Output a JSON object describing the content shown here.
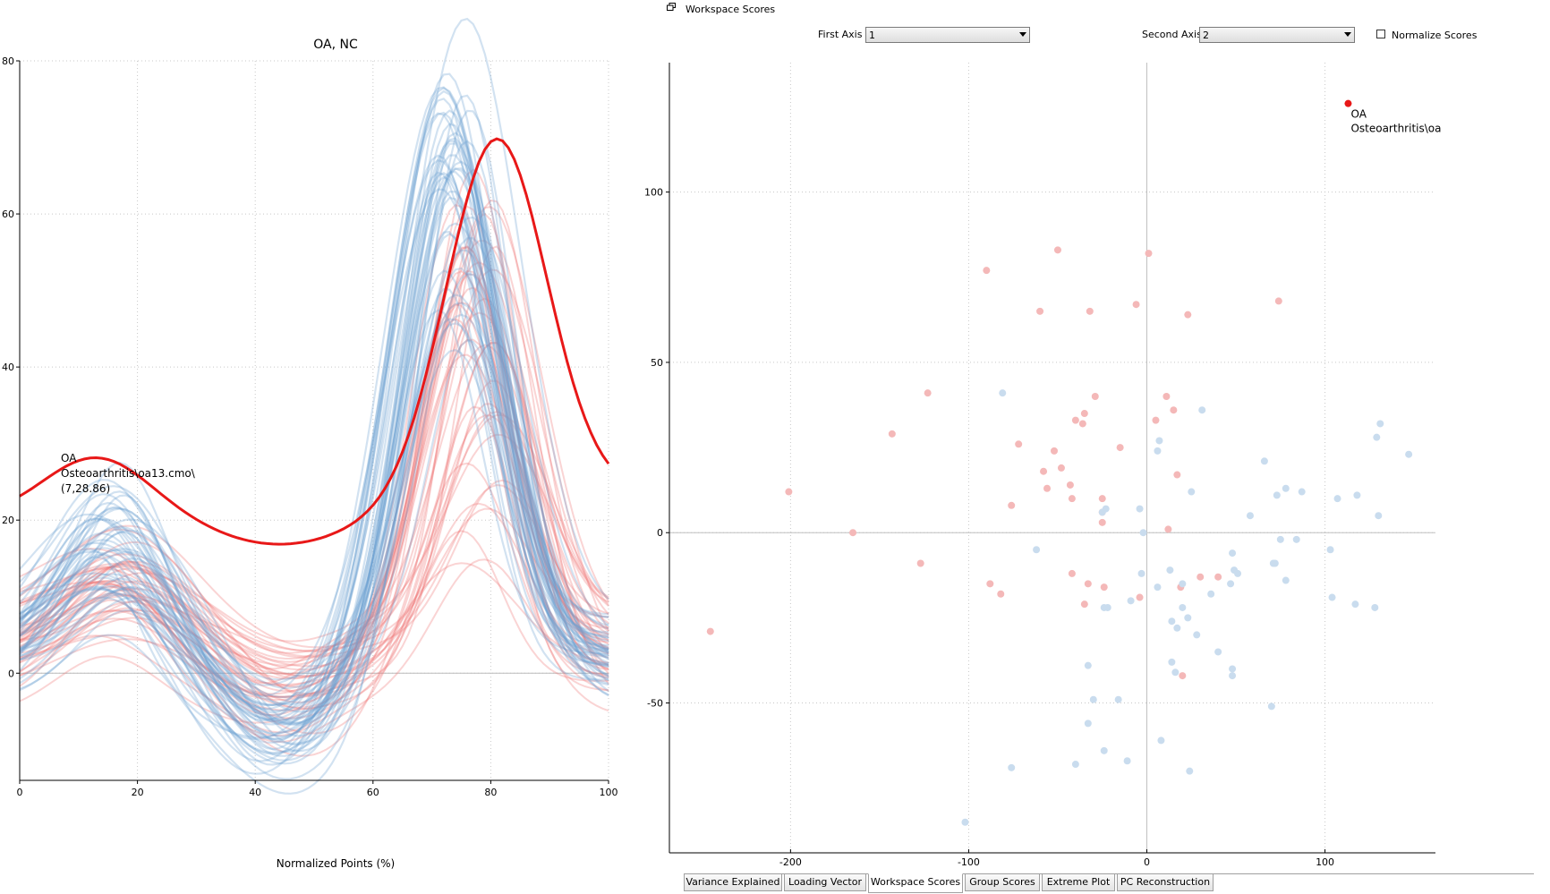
{
  "left_chart": {
    "title": "OA, NC",
    "xlabel": "Normalized Points (%)",
    "xlim": [
      0,
      100
    ],
    "ylim": [
      -14,
      80
    ],
    "xticks": [
      0,
      20,
      40,
      60,
      80,
      100
    ],
    "yticks": [
      0,
      20,
      40,
      60,
      80
    ],
    "annotation": {
      "line1": "OA",
      "line2": "Osteoarthritis\\oa13.cmo\\",
      "line3": "(7,28.86)"
    },
    "colors": {
      "highlight": "#e81818",
      "group_oa": "#f07878",
      "group_nc": "#6a9ed2"
    }
  },
  "panel": {
    "title": "Workspace Scores",
    "first_axis_label": "First Axis",
    "first_axis_value": "1",
    "second_axis_label": "Second Axis",
    "second_axis_value": "2",
    "normalize_label": "Normalize Scores"
  },
  "chart_data": {
    "type": "scatter",
    "xlim": [
      -268,
      162
    ],
    "ylim": [
      -94,
      138
    ],
    "xticks": [
      -200,
      -100,
      0,
      100
    ],
    "yticks": [
      -50,
      0,
      50,
      100
    ],
    "highlight": {
      "x": 113,
      "y": 126,
      "label_line1": "OA",
      "label_line2": "Osteoarthritis\\oa"
    },
    "series": [
      {
        "color": "#f4b8b8",
        "points": [
          [
            -245,
            -29
          ],
          [
            -201,
            12
          ],
          [
            -165,
            0
          ],
          [
            -143,
            29
          ],
          [
            -127,
            -9
          ],
          [
            -123,
            41
          ],
          [
            -90,
            77
          ],
          [
            -88,
            -15
          ],
          [
            -82,
            -18
          ],
          [
            -76,
            8
          ],
          [
            -72,
            26
          ],
          [
            -60,
            65
          ],
          [
            -58,
            18
          ],
          [
            -56,
            13
          ],
          [
            -52,
            24
          ],
          [
            -50,
            83
          ],
          [
            -48,
            19
          ],
          [
            -43,
            14
          ],
          [
            -42,
            10
          ],
          [
            -42,
            -12
          ],
          [
            -40,
            33
          ],
          [
            -36,
            32
          ],
          [
            -35,
            -21
          ],
          [
            -35,
            35
          ],
          [
            -33,
            -15
          ],
          [
            -32,
            65
          ],
          [
            -29,
            40
          ],
          [
            -25,
            3
          ],
          [
            -25,
            6
          ],
          [
            -25,
            10
          ],
          [
            -24,
            -16
          ],
          [
            -15,
            25
          ],
          [
            -6,
            67
          ],
          [
            -4,
            -19
          ],
          [
            1,
            82
          ],
          [
            5,
            33
          ],
          [
            11,
            40
          ],
          [
            12,
            1
          ],
          [
            15,
            36
          ],
          [
            17,
            17
          ],
          [
            19,
            -16
          ],
          [
            20,
            -42
          ],
          [
            23,
            64
          ],
          [
            30,
            -13
          ],
          [
            40,
            -13
          ],
          [
            74,
            68
          ]
        ]
      },
      {
        "color": "#c9dcee",
        "points": [
          [
            -102,
            -85
          ],
          [
            -81,
            41
          ],
          [
            -76,
            -69
          ],
          [
            -62,
            -5
          ],
          [
            -40,
            -68
          ],
          [
            -33,
            -39
          ],
          [
            -33,
            -56
          ],
          [
            -30,
            -49
          ],
          [
            -24,
            -64
          ],
          [
            -25,
            6
          ],
          [
            -24,
            -22
          ],
          [
            -23,
            7
          ],
          [
            -22,
            -22
          ],
          [
            -16,
            -49
          ],
          [
            -11,
            -67
          ],
          [
            -9,
            -20
          ],
          [
            -4,
            7
          ],
          [
            -3,
            -12
          ],
          [
            -2,
            0
          ],
          [
            6,
            -16
          ],
          [
            6,
            24
          ],
          [
            7,
            27
          ],
          [
            8,
            -61
          ],
          [
            13,
            -11
          ],
          [
            14,
            -26
          ],
          [
            14,
            -38
          ],
          [
            16,
            -41
          ],
          [
            17,
            -28
          ],
          [
            20,
            -15
          ],
          [
            20,
            -22
          ],
          [
            23,
            -25
          ],
          [
            24,
            -70
          ],
          [
            25,
            12
          ],
          [
            28,
            -30
          ],
          [
            31,
            36
          ],
          [
            36,
            -18
          ],
          [
            40,
            -35
          ],
          [
            47,
            -15
          ],
          [
            48,
            -40
          ],
          [
            48,
            -42
          ],
          [
            48,
            -6
          ],
          [
            49,
            -11
          ],
          [
            51,
            -12
          ],
          [
            58,
            5
          ],
          [
            66,
            21
          ],
          [
            70,
            -51
          ],
          [
            71,
            -9
          ],
          [
            72,
            -9
          ],
          [
            73,
            11
          ],
          [
            75,
            -2
          ],
          [
            78,
            -14
          ],
          [
            78,
            13
          ],
          [
            84,
            -2
          ],
          [
            87,
            12
          ],
          [
            103,
            -5
          ],
          [
            104,
            -19
          ],
          [
            107,
            10
          ],
          [
            117,
            -21
          ],
          [
            118,
            11
          ],
          [
            128,
            -22
          ],
          [
            129,
            28
          ],
          [
            130,
            5
          ],
          [
            131,
            32
          ],
          [
            147,
            23
          ]
        ]
      }
    ]
  },
  "tabs": [
    {
      "label": "Variance Explained"
    },
    {
      "label": "Loading Vector"
    },
    {
      "label": "Workspace Scores"
    },
    {
      "label": "Group Scores"
    },
    {
      "label": "Extreme Plot"
    },
    {
      "label": "PC Reconstruction"
    }
  ]
}
